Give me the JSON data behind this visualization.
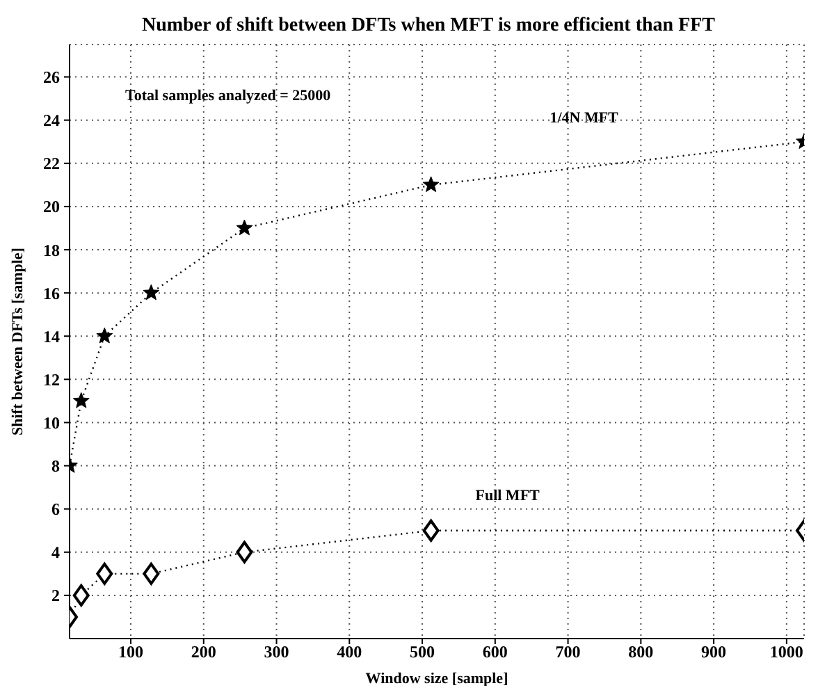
{
  "chart_data": {
    "type": "line",
    "title": "Number of shift between DFTs when MFT is more efficient than FFT",
    "xlabel": "Window size [sample]",
    "ylabel": "Shift between DFTs [sample]",
    "x": [
      16,
      32,
      64,
      128,
      256,
      512,
      1024
    ],
    "series": [
      {
        "name": "1/4N MFT",
        "color": "#000000",
        "marker": "star",
        "values": [
          8,
          11,
          14,
          16,
          19,
          21,
          23
        ]
      },
      {
        "name": "Full MFT",
        "color": "#000000",
        "marker": "diamond",
        "values": [
          1,
          2,
          3,
          3,
          4,
          5,
          5
        ]
      }
    ],
    "annotations": [
      "Total samples analyzed = 25000"
    ],
    "xlim": [
      16,
      1024
    ],
    "xticks": [
      100,
      200,
      300,
      400,
      500,
      600,
      700,
      800,
      900,
      1000
    ],
    "ylim": [
      0,
      27.5
    ],
    "yticks": [
      2,
      4,
      6,
      8,
      10,
      12,
      14,
      16,
      18,
      20,
      22,
      24,
      26
    ],
    "grid": true,
    "line_style": "dotted"
  }
}
